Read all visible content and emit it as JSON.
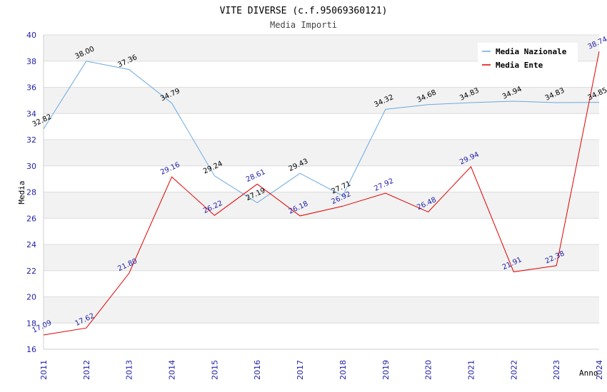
{
  "chart_data": {
    "type": "line",
    "title": "VITE DIVERSE (c.f.95069360121)",
    "subtitle": "Media Importi",
    "xlabel": "Anno",
    "ylabel": "Media",
    "ylim": [
      16,
      40
    ],
    "yticks": [
      16,
      18,
      20,
      22,
      24,
      26,
      28,
      30,
      32,
      34,
      36,
      38,
      40
    ],
    "x": [
      "2011",
      "2012",
      "2013",
      "2014",
      "2015",
      "2016",
      "2017",
      "2018",
      "2019",
      "2020",
      "2021",
      "2022",
      "2023",
      "2024"
    ],
    "legend_position": "top-right",
    "grid": true,
    "series": [
      {
        "name": "Media Nazionale",
        "color": "#6aa8e0",
        "values": [
          32.82,
          38.0,
          37.36,
          34.79,
          29.24,
          27.19,
          29.43,
          27.71,
          34.32,
          34.68,
          34.83,
          34.94,
          34.83,
          34.85
        ],
        "labels": [
          "32.82",
          "38.00",
          "37.36",
          "34.79",
          "29.24",
          "27.19",
          "29.43",
          "27.71",
          "34.32",
          "34.68",
          "34.83",
          "34.94",
          "34.83",
          "34.85"
        ]
      },
      {
        "name": "Media Ente",
        "color": "#e00000",
        "values": [
          17.09,
          17.62,
          21.8,
          29.16,
          26.22,
          28.61,
          26.18,
          26.92,
          27.92,
          26.48,
          29.94,
          21.91,
          22.38,
          38.74
        ],
        "labels": [
          "17.09",
          "17.62",
          "21.80",
          "29.16",
          "26.22",
          "28.61",
          "26.18",
          "26.92",
          "27.92",
          "26.48",
          "29.94",
          "21.91",
          "22.38",
          "38.74"
        ]
      }
    ]
  }
}
